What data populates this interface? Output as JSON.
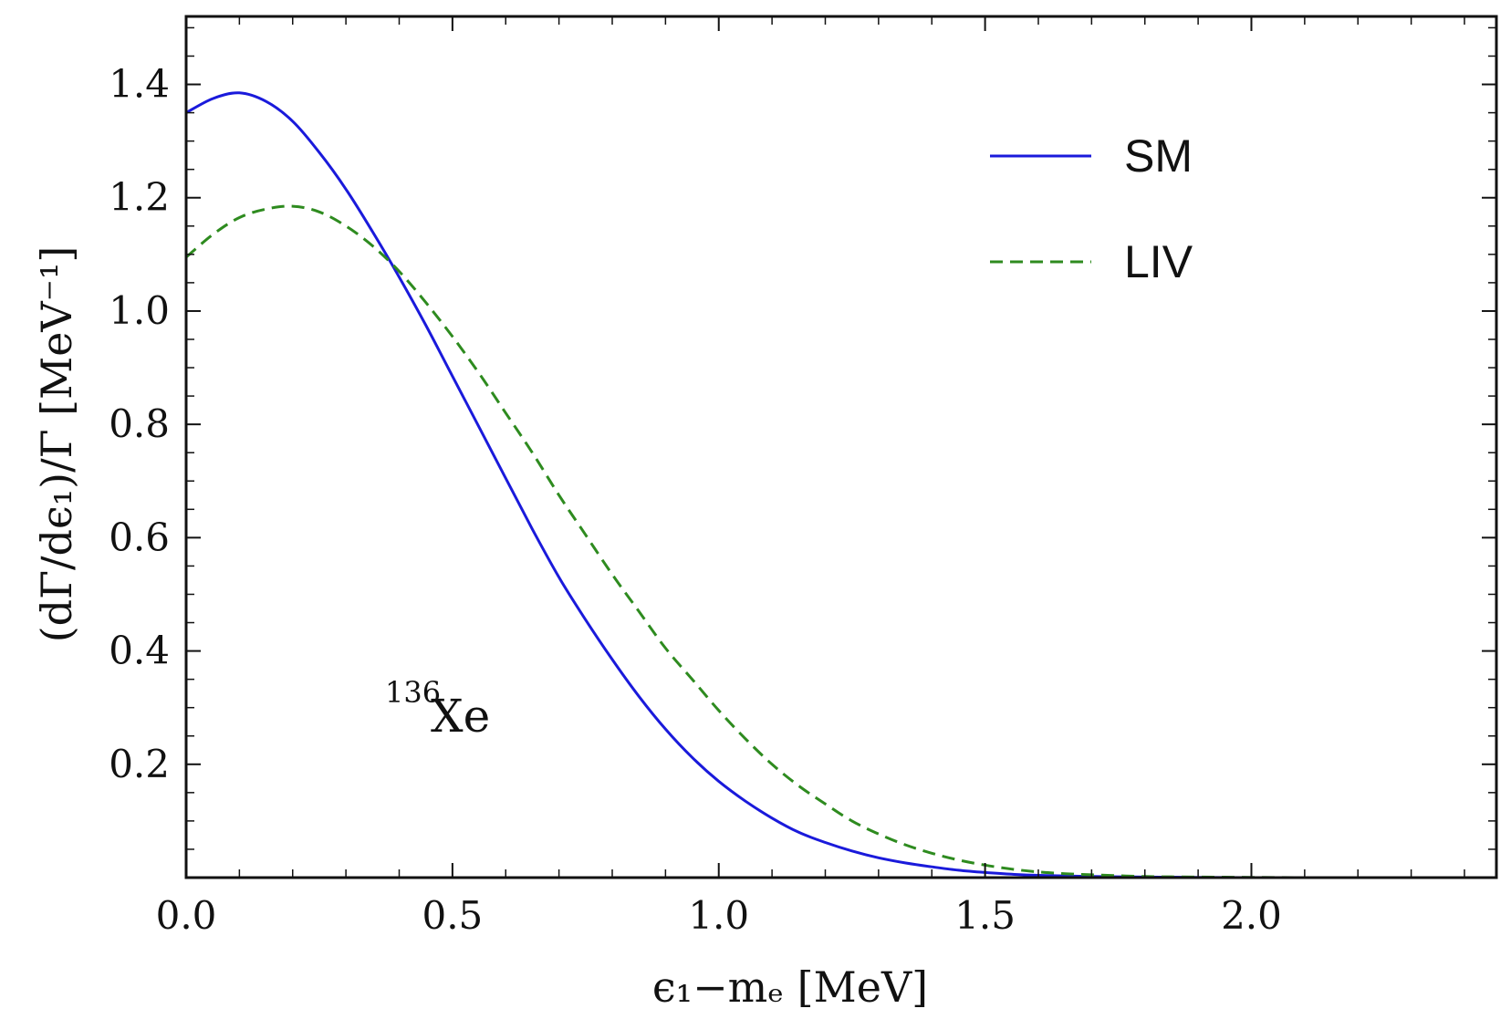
{
  "chart_data": {
    "type": "line",
    "title": "",
    "xlabel": "ϵ₁−mₑ [MeV]",
    "ylabel": "(dΓ/dϵ₁)/Γ [MeV⁻¹]",
    "xlim": [
      0,
      2.46
    ],
    "ylim": [
      0,
      1.52
    ],
    "x_ticks": [
      0.0,
      0.5,
      1.0,
      1.5,
      2.0
    ],
    "x_tick_labels": [
      "0.0",
      "0.5",
      "1.0",
      "1.5",
      "2.0"
    ],
    "y_ticks": [
      0.2,
      0.4,
      0.6,
      0.8,
      1.0,
      1.2,
      1.4
    ],
    "y_tick_labels": [
      "0.2",
      "0.4",
      "0.6",
      "0.8",
      "1.0",
      "1.2",
      "1.4"
    ],
    "grid": false,
    "legend_position": "top-right",
    "annotation": {
      "superscript": "136",
      "text": "Xe"
    },
    "series": [
      {
        "name": "SM",
        "style": "solid",
        "color": "#1a1adb",
        "x": [
          0.0,
          0.05,
          0.1,
          0.15,
          0.2,
          0.25,
          0.3,
          0.35,
          0.4,
          0.45,
          0.5,
          0.55,
          0.6,
          0.65,
          0.7,
          0.75,
          0.8,
          0.85,
          0.9,
          0.95,
          1.0,
          1.05,
          1.1,
          1.15,
          1.2,
          1.25,
          1.3,
          1.35,
          1.4,
          1.45,
          1.5,
          1.55,
          1.6,
          1.7,
          1.8,
          1.9,
          2.0,
          2.1,
          2.2,
          2.3,
          2.46
        ],
        "y": [
          1.35,
          1.375,
          1.385,
          1.37,
          1.335,
          1.28,
          1.215,
          1.14,
          1.06,
          0.975,
          0.885,
          0.795,
          0.705,
          0.615,
          0.53,
          0.455,
          0.385,
          0.32,
          0.262,
          0.212,
          0.17,
          0.135,
          0.105,
          0.08,
          0.062,
          0.047,
          0.035,
          0.026,
          0.019,
          0.013,
          0.009,
          0.006,
          0.004,
          0.002,
          0.001,
          0.0005,
          0.0,
          0.0,
          0.0,
          0.0,
          0.0
        ]
      },
      {
        "name": "LIV",
        "style": "dashed",
        "color": "#2e8b1f",
        "x": [
          0.0,
          0.05,
          0.1,
          0.15,
          0.2,
          0.25,
          0.3,
          0.35,
          0.4,
          0.45,
          0.5,
          0.55,
          0.6,
          0.65,
          0.7,
          0.75,
          0.8,
          0.85,
          0.9,
          0.95,
          1.0,
          1.05,
          1.1,
          1.15,
          1.2,
          1.25,
          1.3,
          1.35,
          1.4,
          1.45,
          1.5,
          1.55,
          1.6,
          1.65,
          1.7,
          1.8,
          1.9,
          2.0,
          2.1,
          2.2,
          2.3,
          2.46
        ],
        "y": [
          1.095,
          1.135,
          1.165,
          1.18,
          1.185,
          1.175,
          1.15,
          1.115,
          1.07,
          1.015,
          0.955,
          0.89,
          0.82,
          0.75,
          0.675,
          0.605,
          0.535,
          0.47,
          0.405,
          0.35,
          0.295,
          0.245,
          0.2,
          0.162,
          0.13,
          0.1,
          0.077,
          0.058,
          0.043,
          0.031,
          0.022,
          0.015,
          0.01,
          0.007,
          0.005,
          0.002,
          0.001,
          0.0005,
          0.0,
          0.0,
          0.0,
          0.0
        ]
      }
    ]
  }
}
